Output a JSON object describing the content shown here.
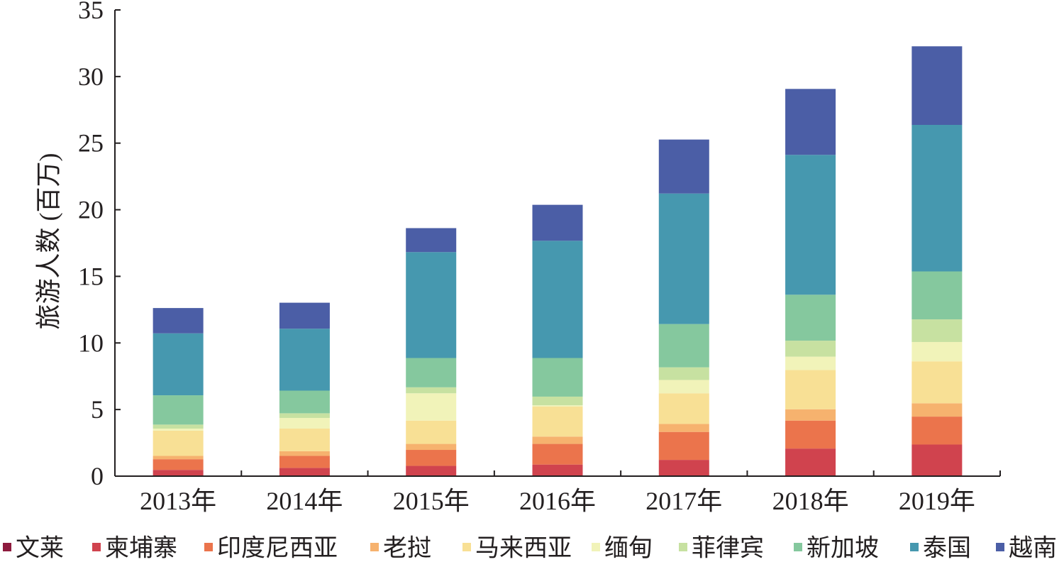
{
  "chart_data": {
    "type": "bar",
    "stacked": true,
    "categories": [
      "2013年",
      "2014年",
      "2015年",
      "2016年",
      "2017年",
      "2018年",
      "2019年"
    ],
    "ylabel": "旅游人数 (百万)",
    "xlabel": "",
    "ylim": [
      0,
      35
    ],
    "yticks": [
      0,
      5,
      10,
      15,
      20,
      25,
      30,
      35
    ],
    "legend_position": "bottom",
    "series": [
      {
        "name": "文莱",
        "color": "#8e1b3e",
        "values": [
          0.02,
          0.02,
          0.02,
          0.02,
          0.02,
          0.02,
          0.02
        ]
      },
      {
        "name": "柬埔寨",
        "color": "#d0434e",
        "values": [
          0.45,
          0.6,
          0.75,
          0.85,
          1.2,
          2.05,
          2.35
        ]
      },
      {
        "name": "印度尼西亚",
        "color": "#eb744c",
        "values": [
          0.8,
          0.9,
          1.2,
          1.55,
          2.1,
          2.1,
          2.1
        ]
      },
      {
        "name": "老挝",
        "color": "#f6b26e",
        "values": [
          0.25,
          0.35,
          0.45,
          0.55,
          0.6,
          0.85,
          1.0
        ]
      },
      {
        "name": "马来西亚",
        "color": "#f8e095",
        "values": [
          1.9,
          1.7,
          1.75,
          2.25,
          2.3,
          2.95,
          3.15
        ]
      },
      {
        "name": "缅甸",
        "color": "#f1f3b9",
        "values": [
          0.15,
          0.8,
          2.05,
          0.1,
          1.0,
          1.0,
          1.45
        ]
      },
      {
        "name": "菲律宾",
        "color": "#c7e1a1",
        "values": [
          0.3,
          0.35,
          0.45,
          0.65,
          0.95,
          1.2,
          1.7
        ]
      },
      {
        "name": "新加坡",
        "color": "#85c89e",
        "values": [
          2.2,
          1.7,
          2.2,
          2.9,
          3.25,
          3.45,
          3.6
        ]
      },
      {
        "name": "泰国",
        "color": "#4698af",
        "values": [
          4.65,
          4.65,
          7.95,
          8.8,
          9.8,
          10.5,
          11.0
        ]
      },
      {
        "name": "越南",
        "color": "#4b5ea6",
        "values": [
          1.9,
          1.95,
          1.8,
          2.7,
          4.05,
          4.95,
          5.9
        ]
      }
    ]
  }
}
